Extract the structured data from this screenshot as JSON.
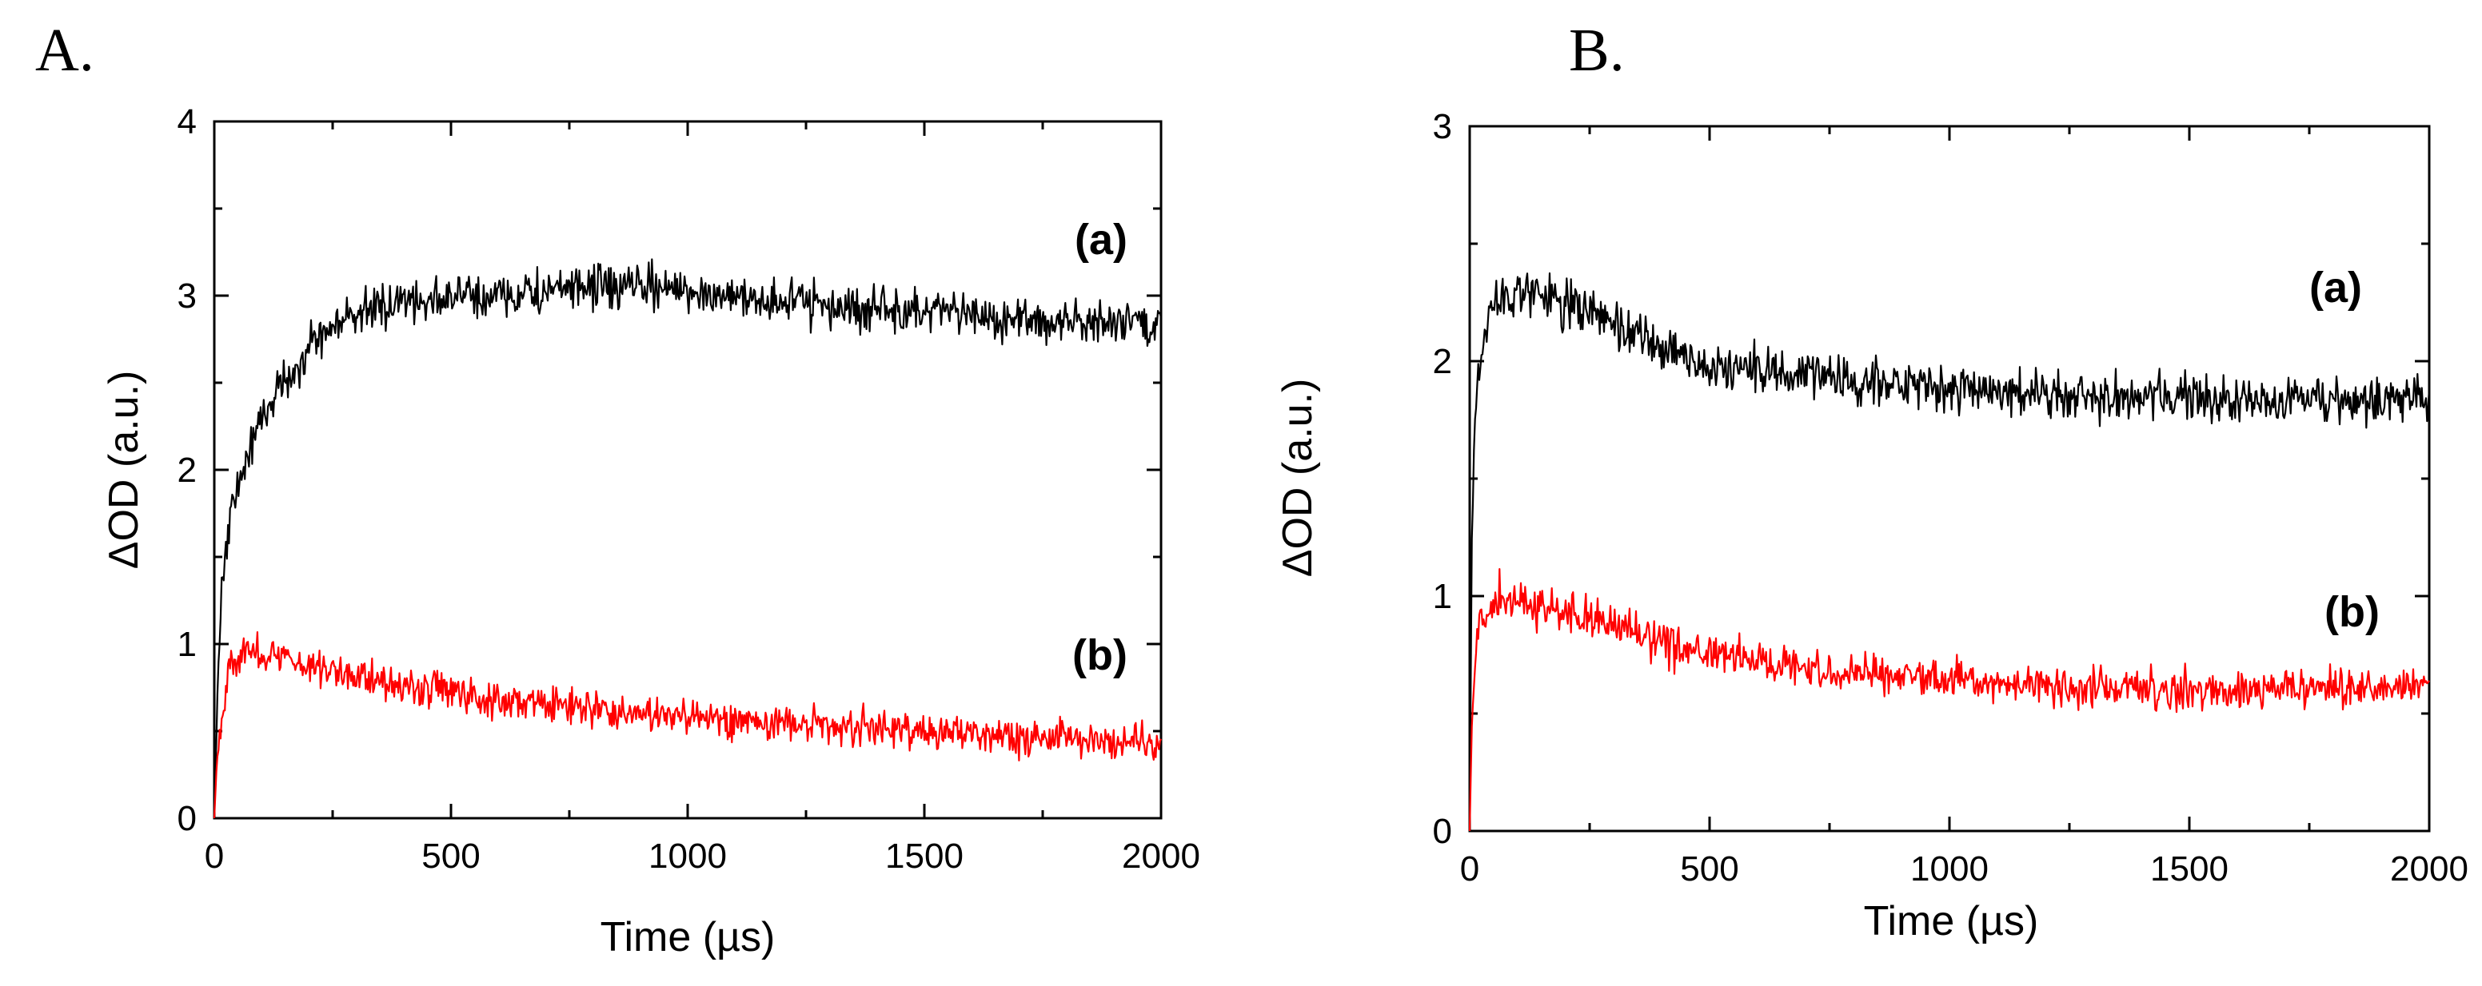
{
  "chart_data": [
    {
      "panel_label": "A.",
      "type": "line",
      "xlabel": "Time (µs)",
      "ylabel": "ΔOD (a.u.)",
      "xlim": [
        0,
        2000
      ],
      "ylim": [
        0,
        4
      ],
      "xticks": [
        0,
        500,
        1000,
        1500,
        2000
      ],
      "yticks": [
        0,
        1,
        2,
        3,
        4
      ],
      "series": [
        {
          "name": "(a)",
          "color": "#000000",
          "points": [
            [
              0,
              0
            ],
            [
              10,
              1.0
            ],
            [
              20,
              1.5
            ],
            [
              40,
              1.8
            ],
            [
              60,
              2.0
            ],
            [
              80,
              2.15
            ],
            [
              100,
              2.3
            ],
            [
              130,
              2.45
            ],
            [
              160,
              2.55
            ],
            [
              200,
              2.7
            ],
            [
              250,
              2.82
            ],
            [
              300,
              2.9
            ],
            [
              400,
              2.97
            ],
            [
              500,
              2.99
            ],
            [
              600,
              3.0
            ],
            [
              700,
              3.02
            ],
            [
              800,
              3.05
            ],
            [
              900,
              3.05
            ],
            [
              1000,
              3.03
            ],
            [
              1100,
              3.0
            ],
            [
              1200,
              2.97
            ],
            [
              1300,
              2.94
            ],
            [
              1400,
              2.92
            ],
            [
              1500,
              2.9
            ],
            [
              1600,
              2.88
            ],
            [
              1700,
              2.86
            ],
            [
              1800,
              2.85
            ],
            [
              1900,
              2.84
            ],
            [
              2000,
              2.83
            ]
          ],
          "noise": 0.11,
          "label_position": "upper-right"
        },
        {
          "name": "(b)",
          "color": "#ff0000",
          "points": [
            [
              0,
              0
            ],
            [
              5,
              0.3
            ],
            [
              15,
              0.6
            ],
            [
              30,
              0.85
            ],
            [
              60,
              0.95
            ],
            [
              100,
              0.95
            ],
            [
              200,
              0.88
            ],
            [
              300,
              0.82
            ],
            [
              500,
              0.72
            ],
            [
              700,
              0.65
            ],
            [
              900,
              0.6
            ],
            [
              1100,
              0.56
            ],
            [
              1300,
              0.53
            ],
            [
              1500,
              0.5
            ],
            [
              1700,
              0.47
            ],
            [
              1900,
              0.45
            ],
            [
              2000,
              0.44
            ]
          ],
          "noise": 0.09,
          "label_position": "lower-right"
        }
      ]
    },
    {
      "panel_label": "B.",
      "type": "line",
      "xlabel": "Time (µs)",
      "ylabel": "ΔOD (a.u.)",
      "xlim": [
        0,
        2000
      ],
      "ylim": [
        0,
        3
      ],
      "xticks": [
        0,
        500,
        1000,
        1500,
        2000
      ],
      "yticks": [
        0,
        1,
        2,
        3
      ],
      "series": [
        {
          "name": "(a)",
          "color": "#000000",
          "points": [
            [
              0,
              0
            ],
            [
              5,
              1.4
            ],
            [
              15,
              1.9
            ],
            [
              30,
              2.15
            ],
            [
              60,
              2.28
            ],
            [
              100,
              2.3
            ],
            [
              200,
              2.25
            ],
            [
              300,
              2.15
            ],
            [
              400,
              2.05
            ],
            [
              500,
              1.98
            ],
            [
              700,
              1.93
            ],
            [
              900,
              1.9
            ],
            [
              1100,
              1.87
            ],
            [
              1300,
              1.85
            ],
            [
              1500,
              1.83
            ],
            [
              1700,
              1.83
            ],
            [
              1900,
              1.84
            ],
            [
              2000,
              1.84
            ]
          ],
          "noise": 0.09,
          "label_position": "upper-right"
        },
        {
          "name": "(b)",
          "color": "#ff0000",
          "points": [
            [
              0,
              0
            ],
            [
              5,
              0.5
            ],
            [
              15,
              0.8
            ],
            [
              30,
              0.95
            ],
            [
              60,
              1.0
            ],
            [
              100,
              0.98
            ],
            [
              200,
              0.93
            ],
            [
              300,
              0.87
            ],
            [
              400,
              0.8
            ],
            [
              500,
              0.75
            ],
            [
              700,
              0.7
            ],
            [
              900,
              0.66
            ],
            [
              1100,
              0.63
            ],
            [
              1300,
              0.61
            ],
            [
              1500,
              0.6
            ],
            [
              1700,
              0.6
            ],
            [
              1900,
              0.61
            ],
            [
              2000,
              0.62
            ]
          ],
          "noise": 0.075,
          "label_position": "lower-right"
        }
      ]
    }
  ]
}
